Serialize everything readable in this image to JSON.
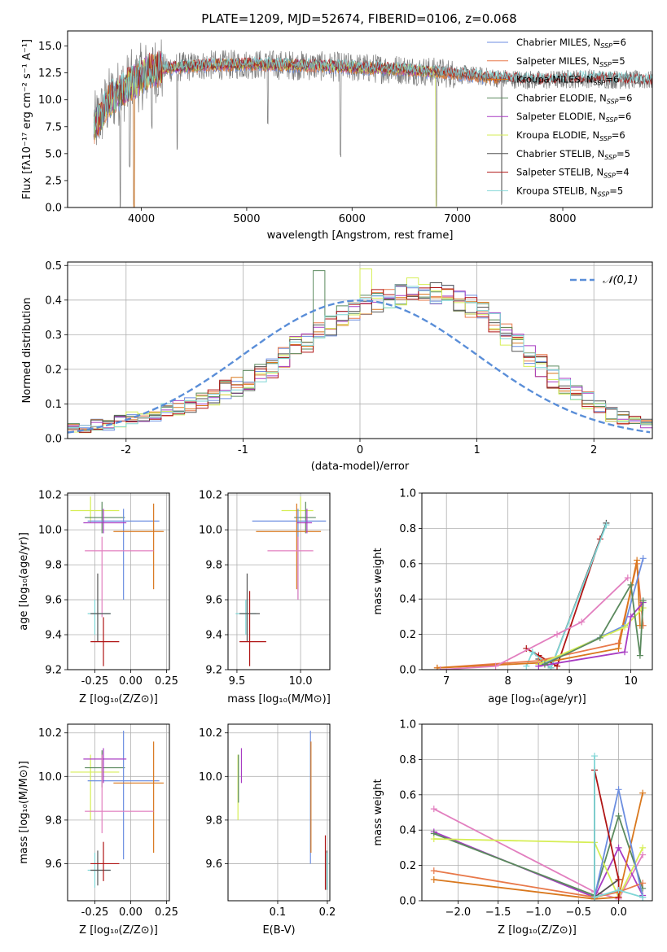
{
  "figure": {
    "title": "PLATE=1209, MJD=52674, FIBERID=0106, z=0.068"
  },
  "colors": {
    "Chabrier MILES": "#6c8ee0",
    "Salpeter MILES": "#e8794a",
    "Kroupa MILES": "#d9781e",
    "Chabrier ELODIE": "#5b8a5e",
    "Salpeter ELODIE": "#a83cc3",
    "Kroupa ELODIE": "#d6ee55",
    "Chabrier STELIB": "#555555",
    "Salpeter STELIB": "#b01515",
    "Kroupa STELIB": "#7fd6d6",
    "normal": "#5a8ed8",
    "data": "#7a7a7a",
    "pink": "#e27fbf"
  },
  "chart_data": [
    {
      "id": "spectrum",
      "type": "line",
      "title": "PLATE=1209, MJD=52674, FIBERID=0106, z=0.068",
      "xlabel": "wavelength [Angstrom, rest frame]",
      "ylabel": "Flux [fλ10⁻¹⁷ erg cm⁻² s⁻¹ A⁻¹]",
      "xlim": [
        3300,
        8850
      ],
      "ylim": [
        0,
        16.4
      ],
      "xticks": [
        4000,
        5000,
        6000,
        7000,
        8000
      ],
      "yticks": [
        0.0,
        2.5,
        5.0,
        7.5,
        10.0,
        12.5,
        15.0
      ],
      "legend_position": "right",
      "legend": [
        {
          "name": "Chabrier MILES",
          "nssp": "6"
        },
        {
          "name": "Salpeter MILES",
          "nssp": "5"
        },
        {
          "name": "Kroupa MILES",
          "nssp": "6"
        },
        {
          "name": "Chabrier ELODIE",
          "nssp": "6"
        },
        {
          "name": "Salpeter ELODIE",
          "nssp": "6"
        },
        {
          "name": "Kroupa ELODIE",
          "nssp": "6"
        },
        {
          "name": "Chabrier STELIB",
          "nssp": "5"
        },
        {
          "name": "Salpeter STELIB",
          "nssp": "4"
        },
        {
          "name": "Kroupa STELIB",
          "nssp": "5"
        }
      ],
      "continuum": {
        "x": [
          3550,
          3700,
          3900,
          4100,
          4300,
          4600,
          5000,
          5500,
          6000,
          6500,
          7000,
          7400,
          7800,
          8200,
          8800
        ],
        "y": [
          7.5,
          10.0,
          11.5,
          12.8,
          13.0,
          13.2,
          13.3,
          13.2,
          13.0,
          12.8,
          12.4,
          12.0,
          11.8,
          12.0,
          11.8
        ]
      },
      "features": [
        {
          "x": 3800,
          "y": 0.0
        },
        {
          "x": 3890,
          "y": 3.5
        },
        {
          "x": 3930,
          "y": 0.0
        },
        {
          "x": 4100,
          "y": 7.0
        },
        {
          "x": 4340,
          "y": 5.0
        },
        {
          "x": 5200,
          "y": 7.5
        },
        {
          "x": 5890,
          "y": 4.5
        },
        {
          "x": 6800,
          "y": 0.0
        },
        {
          "x": 7420,
          "y": 0.0
        }
      ]
    },
    {
      "id": "residuals",
      "type": "line",
      "xlabel": "(data-model)/error",
      "ylabel": "Normed distribution",
      "xlim": [
        -2.5,
        2.5
      ],
      "ylim": [
        0,
        0.51
      ],
      "xticks": [
        -2,
        -1,
        0,
        1,
        2
      ],
      "yticks": [
        0.0,
        0.1,
        0.2,
        0.3,
        0.4,
        0.5
      ],
      "legend_position": "top-right",
      "legend": [
        "𝒩(0,1)"
      ],
      "hist_bins": [
        -2.5,
        2.5,
        0.1
      ],
      "hist_base": [
        0.03,
        0.03,
        0.04,
        0.04,
        0.05,
        0.06,
        0.06,
        0.07,
        0.08,
        0.09,
        0.1,
        0.11,
        0.12,
        0.14,
        0.15,
        0.17,
        0.19,
        0.21,
        0.24,
        0.26,
        0.28,
        0.3,
        0.33,
        0.35,
        0.37,
        0.38,
        0.4,
        0.41,
        0.42,
        0.43,
        0.43,
        0.42,
        0.41,
        0.4,
        0.38,
        0.36,
        0.33,
        0.3,
        0.27,
        0.24,
        0.21,
        0.18,
        0.15,
        0.13,
        0.11,
        0.09,
        0.07,
        0.06,
        0.05,
        0.04
      ]
    },
    {
      "id": "age-Z",
      "type": "scatter",
      "xlabel": "Z [log₁₀(Z/Z⊙)]",
      "ylabel": "age  [log₁₀(age/yr)]",
      "xlim": [
        -0.44,
        0.27
      ],
      "ylim": [
        9.2,
        10.21
      ],
      "xticks": [
        "-0.25",
        "0.00",
        "0.25"
      ],
      "yticks": [
        "9.2",
        "9.4",
        "9.6",
        "9.8",
        "10.0",
        "10.2"
      ],
      "points": [
        {
          "x": -0.28,
          "y": 10.11,
          "xl": -0.42,
          "xh": -0.08,
          "yl": 10.04,
          "yh": 10.19,
          "c": "Kroupa ELODIE"
        },
        {
          "x": -0.2,
          "y": 10.07,
          "xl": -0.32,
          "xh": -0.04,
          "yl": 9.98,
          "yh": 10.16,
          "c": "Chabrier ELODIE"
        },
        {
          "x": -0.05,
          "y": 10.05,
          "xl": -0.3,
          "xh": 0.2,
          "yl": 9.6,
          "yh": 10.12,
          "c": "Chabrier MILES"
        },
        {
          "x": 0.16,
          "y": 9.99,
          "xl": -0.12,
          "xh": 0.23,
          "yl": 9.66,
          "yh": 10.15,
          "c": "Kroupa MILES"
        },
        {
          "x": -0.19,
          "y": 10.04,
          "xl": -0.33,
          "xh": -0.03,
          "yl": 9.98,
          "yh": 10.12,
          "c": "Salpeter ELODIE"
        },
        {
          "x": -0.2,
          "y": 9.88,
          "xl": -0.32,
          "xh": 0.16,
          "yl": 9.5,
          "yh": 9.96,
          "c": "pink"
        },
        {
          "x": -0.25,
          "y": 9.52,
          "xl": -0.3,
          "xh": -0.14,
          "yl": 9.4,
          "yh": 9.6,
          "c": "Kroupa STELIB"
        },
        {
          "x": -0.23,
          "y": 9.52,
          "xl": -0.28,
          "xh": -0.14,
          "yl": 9.36,
          "yh": 9.75,
          "c": "Chabrier STELIB"
        },
        {
          "x": -0.19,
          "y": 9.36,
          "xl": -0.28,
          "xh": -0.08,
          "yl": 9.22,
          "yh": 9.5,
          "c": "Salpeter STELIB"
        }
      ]
    },
    {
      "id": "age-mass",
      "type": "scatter",
      "xlabel": "mass [log₁₀(M/M⊙)]",
      "xlim": [
        9.43,
        10.23
      ],
      "ylim": [
        9.2,
        10.21
      ],
      "xticks": [
        "9.5",
        "10.0"
      ],
      "yticks": [
        "9.2",
        "9.4",
        "9.6",
        "9.8",
        "10.0",
        "10.2"
      ],
      "points": [
        {
          "x": 10.0,
          "y": 10.11,
          "xl": 9.85,
          "xh": 10.1,
          "yl": 10.04,
          "yh": 10.19,
          "c": "Kroupa ELODIE"
        },
        {
          "x": 10.04,
          "y": 10.07,
          "xl": 9.95,
          "xh": 10.12,
          "yl": 9.98,
          "yh": 10.16,
          "c": "Chabrier ELODIE"
        },
        {
          "x": 9.98,
          "y": 10.05,
          "xl": 9.62,
          "xh": 10.2,
          "yl": 9.6,
          "yh": 10.12,
          "c": "Chabrier MILES"
        },
        {
          "x": 9.97,
          "y": 9.99,
          "xl": 9.65,
          "xh": 10.16,
          "yl": 9.66,
          "yh": 10.15,
          "c": "Kroupa MILES"
        },
        {
          "x": 10.05,
          "y": 10.04,
          "xl": 9.97,
          "xh": 10.09,
          "yl": 9.98,
          "yh": 10.12,
          "c": "Salpeter ELODIE"
        },
        {
          "x": 9.98,
          "y": 9.88,
          "xl": 9.74,
          "xh": 10.1,
          "yl": 9.6,
          "yh": 9.96,
          "c": "pink"
        },
        {
          "x": 9.57,
          "y": 9.52,
          "xl": 9.49,
          "xh": 9.65,
          "yl": 9.4,
          "yh": 9.6,
          "c": "Kroupa STELIB"
        },
        {
          "x": 9.58,
          "y": 9.52,
          "xl": 9.52,
          "xh": 9.68,
          "yl": 9.36,
          "yh": 9.75,
          "c": "Chabrier STELIB"
        },
        {
          "x": 9.6,
          "y": 9.36,
          "xl": 9.52,
          "xh": 9.73,
          "yl": 9.22,
          "yh": 9.65,
          "c": "Salpeter STELIB"
        }
      ]
    },
    {
      "id": "weight-age",
      "type": "line",
      "xlabel": "age  [log₁₀(age/yr)]",
      "ylabel": "mass weight",
      "xlim": [
        6.6,
        10.35
      ],
      "ylim": [
        0,
        1.0
      ],
      "xticks": [
        "7",
        "8",
        "9",
        "10"
      ],
      "yticks": [
        "0.0",
        "0.2",
        "0.4",
        "0.6",
        "0.8",
        "1.0"
      ],
      "series": [
        {
          "c": "Chabrier STELIB",
          "x": [
            8.5,
            8.7,
            9.6
          ],
          "y": [
            0.06,
            0.01,
            0.83
          ]
        },
        {
          "c": "Salpeter STELIB",
          "x": [
            8.3,
            8.5,
            8.8,
            9.5
          ],
          "y": [
            0.12,
            0.08,
            0.02,
            0.74
          ]
        },
        {
          "c": "Kroupa STELIB",
          "x": [
            8.3,
            8.4,
            8.7,
            9.6
          ],
          "y": [
            0.02,
            0.1,
            0.01,
            0.82
          ]
        },
        {
          "c": "Salpeter MILES",
          "x": [
            6.85,
            8.5,
            9.8,
            10.1,
            10.2
          ],
          "y": [
            0.01,
            0.05,
            0.15,
            0.6,
            0.25
          ]
        },
        {
          "c": "Kroupa MILES",
          "x": [
            6.85,
            8.6,
            9.8,
            10.1,
            10.15
          ],
          "y": [
            0.01,
            0.04,
            0.12,
            0.62,
            0.25
          ]
        },
        {
          "c": "Chabrier MILES",
          "x": [
            8.5,
            9.9,
            10.2
          ],
          "y": [
            0.02,
            0.25,
            0.63
          ]
        },
        {
          "c": "Kroupa ELODIE",
          "x": [
            8.5,
            9.9,
            10.2
          ],
          "y": [
            0.03,
            0.24,
            0.35
          ]
        },
        {
          "c": "Salpeter ELODIE",
          "x": [
            8.5,
            9.9,
            10.0,
            10.2
          ],
          "y": [
            0.02,
            0.1,
            0.3,
            0.38
          ]
        },
        {
          "c": "Chabrier ELODIE",
          "x": [
            8.6,
            9.5,
            10.0,
            10.15,
            10.2
          ],
          "y": [
            0.03,
            0.18,
            0.48,
            0.08,
            0.39
          ]
        },
        {
          "c": "pink",
          "x": [
            6.9,
            7.8,
            8.8,
            9.2,
            9.95
          ],
          "y": [
            0.0,
            0.02,
            0.2,
            0.27,
            0.52
          ]
        }
      ]
    },
    {
      "id": "mass-Z",
      "type": "scatter",
      "xlabel": "Z [log₁₀(Z/Z⊙)]",
      "ylabel": "mass [log₁₀(M/M⊙)]",
      "xlim": [
        -0.44,
        0.27
      ],
      "ylim": [
        9.43,
        10.24
      ],
      "xticks": [
        "-0.25",
        "0.00",
        "0.25"
      ],
      "yticks": [
        "9.6",
        "9.8",
        "10.0",
        "10.2"
      ],
      "points": [
        {
          "x": -0.28,
          "y": 10.02,
          "xl": -0.42,
          "xh": -0.08,
          "yl": 9.8,
          "yh": 10.1,
          "c": "Kroupa ELODIE"
        },
        {
          "x": -0.2,
          "y": 10.04,
          "xl": -0.32,
          "xh": -0.04,
          "yl": 9.95,
          "yh": 10.12,
          "c": "Chabrier ELODIE"
        },
        {
          "x": -0.05,
          "y": 9.98,
          "xl": -0.3,
          "xh": 0.2,
          "yl": 9.62,
          "yh": 10.21,
          "c": "Chabrier MILES"
        },
        {
          "x": 0.16,
          "y": 9.97,
          "xl": -0.12,
          "xh": 0.23,
          "yl": 9.65,
          "yh": 10.16,
          "c": "Kroupa MILES"
        },
        {
          "x": -0.19,
          "y": 10.08,
          "xl": -0.33,
          "xh": -0.03,
          "yl": 9.97,
          "yh": 10.13,
          "c": "Salpeter ELODIE"
        },
        {
          "x": -0.2,
          "y": 9.84,
          "xl": -0.32,
          "xh": 0.16,
          "yl": 9.74,
          "yh": 10.1,
          "c": "pink"
        },
        {
          "x": -0.25,
          "y": 9.57,
          "xl": -0.3,
          "xh": -0.14,
          "yl": 9.49,
          "yh": 9.65,
          "c": "Kroupa STELIB"
        },
        {
          "x": -0.23,
          "y": 9.57,
          "xl": -0.28,
          "xh": -0.14,
          "yl": 9.5,
          "yh": 9.66,
          "c": "Chabrier STELIB"
        },
        {
          "x": -0.19,
          "y": 9.6,
          "xl": -0.28,
          "xh": -0.08,
          "yl": 9.52,
          "yh": 9.7,
          "c": "Salpeter STELIB"
        }
      ]
    },
    {
      "id": "mass-ebv",
      "type": "scatter",
      "xlabel": "E(B-V)",
      "xlim": [
        0.0,
        0.205
      ],
      "ylim": [
        9.43,
        10.24
      ],
      "xticks": [
        "0.1",
        "0.2"
      ],
      "yticks": [
        "9.6",
        "9.8",
        "10.0",
        "10.2"
      ],
      "points": [
        {
          "x": 0.02,
          "y": 10.05,
          "yl": 9.8,
          "yh": 10.1,
          "c": "Kroupa ELODIE"
        },
        {
          "x": 0.021,
          "y": 9.95,
          "yl": 9.88,
          "yh": 10.1,
          "c": "Chabrier ELODIE"
        },
        {
          "x": 0.027,
          "y": 10.05,
          "yl": 9.97,
          "yh": 10.13,
          "c": "Salpeter ELODIE"
        },
        {
          "x": 0.166,
          "y": 9.95,
          "yl": 9.6,
          "yh": 10.21,
          "c": "Chabrier MILES"
        },
        {
          "x": 0.167,
          "y": 9.95,
          "yl": 9.65,
          "yh": 10.16,
          "c": "Kroupa MILES"
        },
        {
          "x": 0.196,
          "y": 9.6,
          "yl": 9.48,
          "yh": 9.73,
          "c": "Salpeter STELIB"
        },
        {
          "x": 0.199,
          "y": 9.57,
          "yl": 9.48,
          "yh": 9.66,
          "c": "Chabrier STELIB"
        },
        {
          "x": 0.2,
          "y": 9.55,
          "yl": 9.48,
          "yh": 9.65,
          "c": "Kroupa STELIB"
        }
      ]
    },
    {
      "id": "weight-Z",
      "type": "line",
      "xlabel": "Z [log₁₀(Z/Z⊙)]",
      "ylabel": "mass weight",
      "xlim": [
        -2.45,
        0.42
      ],
      "ylim": [
        0,
        1.0
      ],
      "xticks": [
        "−2.0",
        "−1.5",
        "−1.0",
        "−0.5",
        "0.0"
      ],
      "yticks": [
        "0.0",
        "0.2",
        "0.4",
        "0.6",
        "0.8",
        "1.0"
      ],
      "series": [
        {
          "c": "pink",
          "x": [
            -2.3,
            -0.3,
            0.0,
            0.3
          ],
          "y": [
            0.52,
            0.05,
            0.01,
            0.26
          ]
        },
        {
          "c": "Salpeter ELODIE",
          "x": [
            -2.3,
            -0.3,
            0.0,
            0.3
          ],
          "y": [
            0.39,
            0.02,
            0.3,
            0.03
          ]
        },
        {
          "c": "Chabrier ELODIE",
          "x": [
            -2.3,
            -0.3,
            0.0,
            0.3
          ],
          "y": [
            0.38,
            0.03,
            0.48,
            0.07
          ]
        },
        {
          "c": "Kroupa ELODIE",
          "x": [
            -2.3,
            -0.3,
            0.0,
            0.3
          ],
          "y": [
            0.35,
            0.33,
            0.02,
            0.3
          ]
        },
        {
          "c": "Salpeter MILES",
          "x": [
            -2.3,
            -0.3,
            0.0,
            0.3
          ],
          "y": [
            0.17,
            0.02,
            0.05,
            0.1
          ]
        },
        {
          "c": "Kroupa MILES",
          "x": [
            -2.3,
            -0.3,
            0.0,
            0.3
          ],
          "y": [
            0.12,
            0.01,
            0.02,
            0.61
          ]
        },
        {
          "c": "Chabrier MILES",
          "x": [
            -0.3,
            0.0,
            0.3
          ],
          "y": [
            0.02,
            0.63,
            0.02
          ]
        },
        {
          "c": "Chabrier STELIB",
          "x": [
            -0.3,
            -0.3,
            0.0
          ],
          "y": [
            0.74,
            0.02,
            0.12
          ]
        },
        {
          "c": "Salpeter STELIB",
          "x": [
            -0.3,
            0.0,
            0.0
          ],
          "y": [
            0.74,
            0.12,
            0.02
          ]
        },
        {
          "c": "Kroupa STELIB",
          "x": [
            -0.3,
            -0.3,
            0.0,
            0.3
          ],
          "y": [
            0.82,
            0.02,
            0.06,
            0.02
          ]
        }
      ]
    }
  ]
}
